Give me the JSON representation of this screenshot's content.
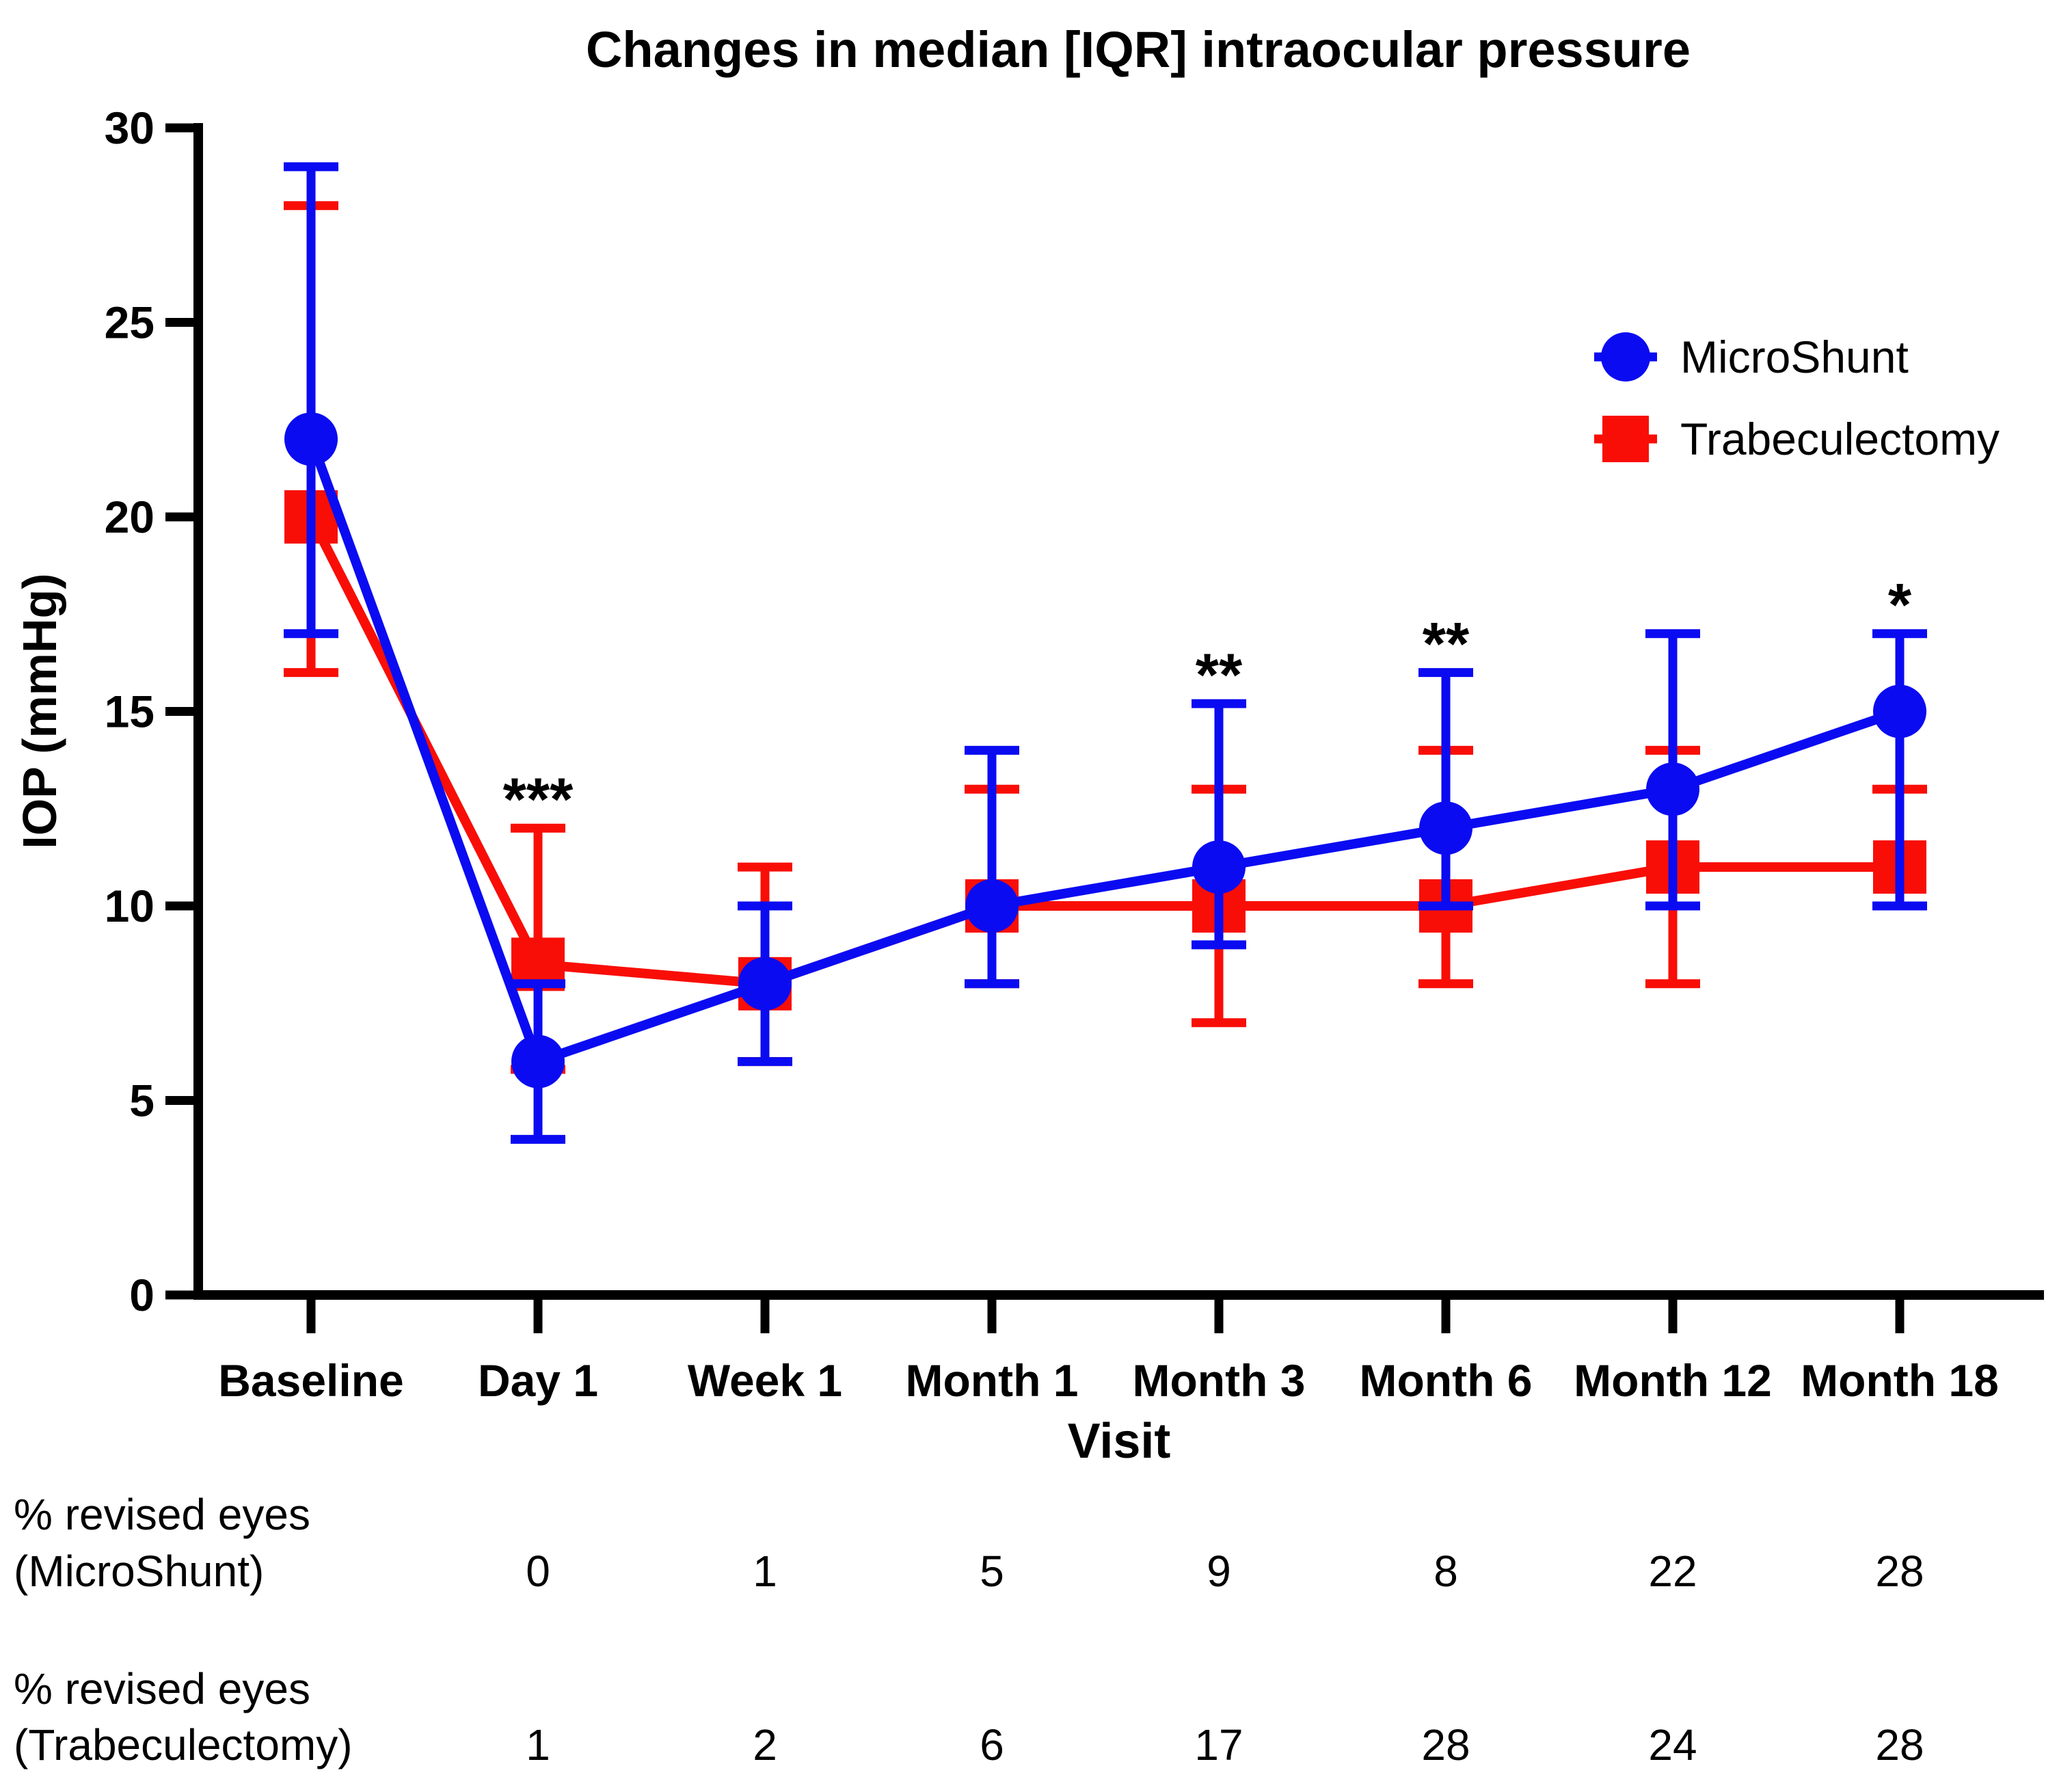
{
  "title": "Changes in median [IQR] intraocular pressure",
  "chart_data": {
    "type": "line",
    "title": "Changes in median [IQR] intraocular pressure",
    "xlabel": "Visit",
    "ylabel": "IOP (mmHg)",
    "ylim": [
      0,
      30
    ],
    "yticks": [
      0,
      5,
      10,
      15,
      20,
      25,
      30
    ],
    "grid": false,
    "legend_position": "upper right",
    "categories": [
      "Baseline",
      "Day 1",
      "Week 1",
      "Month 1",
      "Month 3",
      "Month 6",
      "Month 12",
      "Month 18"
    ],
    "series": [
      {
        "name": "MicroShunt",
        "color": "#0b0bf2",
        "marker": "circle",
        "median": [
          22,
          6,
          8,
          10,
          11,
          12,
          13,
          15
        ],
        "iqr_low": [
          17,
          4,
          6,
          8,
          9,
          10,
          10,
          10
        ],
        "iqr_high": [
          29,
          8,
          10,
          14,
          15.2,
          16,
          17,
          17
        ]
      },
      {
        "name": "Trabeculectomy",
        "color": "#f80e07",
        "marker": "square",
        "median": [
          20,
          8.5,
          8,
          10,
          10,
          10,
          11,
          11
        ],
        "iqr_low": [
          16,
          5.8,
          6,
          8,
          7,
          8,
          8,
          10
        ],
        "iqr_high": [
          28,
          12,
          11,
          13,
          13,
          14,
          14,
          13
        ]
      }
    ],
    "significance": [
      "",
      "***",
      "",
      "",
      "**",
      "**",
      "",
      "*"
    ]
  },
  "revision_table": {
    "rows": [
      {
        "label_line1": "% revised eyes",
        "label_line2": "(MicroShunt)",
        "values": [
          "",
          "0",
          "1",
          "5",
          "9",
          "8",
          "22",
          "28"
        ]
      },
      {
        "label_line1": "% revised eyes",
        "label_line2": "(Trabeculectomy)",
        "values": [
          "",
          "1",
          "2",
          "6",
          "17",
          "28",
          "24",
          "28"
        ]
      }
    ]
  },
  "axis_color": "#000000"
}
